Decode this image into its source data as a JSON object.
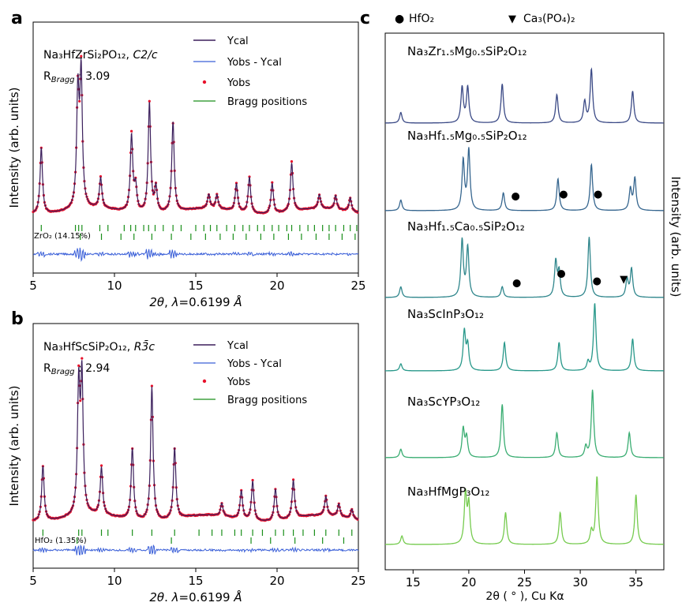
{
  "figure": {
    "panel_a_letter": "a",
    "panel_b_letter": "b",
    "panel_c_letter": "c"
  },
  "chart_data": [
    {
      "panel": "a",
      "type": "line",
      "ylabel": "Intensity (arb. units)",
      "xlabel_prefix": "2θ, ",
      "xlabel_lambda": "λ=0.6199 Å",
      "xlim": [
        5,
        25
      ],
      "xticks": [
        5,
        10,
        15,
        20,
        25
      ],
      "compound_label": "Na₃HfZrSi₂PO₁₂, ",
      "space_group": "C2/c",
      "rbragg_label": "R",
      "rbragg_sub": "Bragg",
      "rbragg_value": " : 3.09",
      "phase_label": "ZrO₂ (14.15%)",
      "legend_position": "top-right",
      "series": [
        {
          "name": "Ycal",
          "color": "#3b1f5c"
        },
        {
          "name": "Yobs - Ycal",
          "color": "#3a5fd8"
        },
        {
          "name": "Yobs",
          "color": "#e8102a"
        },
        {
          "name": "Bragg positions",
          "color": "#1a8f1a"
        }
      ],
      "peaks": [
        [
          5.5,
          0.48
        ],
        [
          7.75,
          0.82
        ],
        [
          7.95,
          0.95
        ],
        [
          9.15,
          0.22
        ],
        [
          11.05,
          0.55
        ],
        [
          11.3,
          0.18
        ],
        [
          12.15,
          0.8
        ],
        [
          12.55,
          0.18
        ],
        [
          13.6,
          0.65
        ],
        [
          15.8,
          0.1
        ],
        [
          16.3,
          0.1
        ],
        [
          17.5,
          0.2
        ],
        [
          18.3,
          0.26
        ],
        [
          19.7,
          0.22
        ],
        [
          20.9,
          0.35
        ],
        [
          22.6,
          0.1
        ],
        [
          23.6,
          0.1
        ],
        [
          24.5,
          0.1
        ]
      ],
      "bragg_row1": [
        5.5,
        7.6,
        7.8,
        8.0,
        9.1,
        9.6,
        10.6,
        11.0,
        11.3,
        11.8,
        12.1,
        12.5,
        13.0,
        13.6,
        14.1,
        15.0,
        15.5,
        15.9,
        16.3,
        16.9,
        17.4,
        17.9,
        18.3,
        18.8,
        19.2,
        19.7,
        20.1,
        20.6,
        20.9,
        21.4,
        21.9,
        22.3,
        22.8,
        23.2,
        23.6,
        24.1,
        24.5,
        24.9
      ],
      "bragg_row2": [
        7.9,
        9.2,
        10.4,
        11.2,
        12.3,
        13.5,
        14.7,
        15.6,
        16.5,
        17.3,
        18.1,
        19.0,
        19.8,
        20.7,
        21.5,
        22.4,
        23.2,
        24.0,
        24.8
      ]
    },
    {
      "panel": "b",
      "type": "line",
      "ylabel": "Intensity (arb. units)",
      "xlabel_prefix": "2θ, ",
      "xlabel_lambda": "λ=0.6199 Å",
      "xlim": [
        5,
        25
      ],
      "xticks": [
        5,
        10,
        15,
        20,
        25
      ],
      "compound_label": "Na₃HfScSiP₂O₁₂, ",
      "space_group": "R3̄c",
      "rbragg_label": "R",
      "rbragg_sub": "Bragg",
      "rbragg_value": " : 2.94",
      "phase_label": "HfO₂ (1.35%)",
      "legend_position": "top-right",
      "series": [
        {
          "name": "Ycal",
          "color": "#3b1f5c"
        },
        {
          "name": "Yobs - Ycal",
          "color": "#3a5fd8"
        },
        {
          "name": "Yobs",
          "color": "#e8102a"
        },
        {
          "name": "Bragg positions",
          "color": "#1a8f1a"
        }
      ],
      "peaks": [
        [
          5.6,
          0.35
        ],
        [
          7.8,
          0.8
        ],
        [
          8.0,
          0.85
        ],
        [
          9.2,
          0.3
        ],
        [
          11.1,
          0.45
        ],
        [
          12.3,
          0.85
        ],
        [
          13.7,
          0.45
        ],
        [
          16.6,
          0.08
        ],
        [
          17.8,
          0.18
        ],
        [
          18.5,
          0.25
        ],
        [
          19.9,
          0.2
        ],
        [
          21.0,
          0.24
        ],
        [
          23.0,
          0.12
        ],
        [
          23.8,
          0.08
        ],
        [
          24.6,
          0.06
        ]
      ],
      "bragg_row1": [
        5.6,
        7.8,
        8.0,
        9.2,
        9.6,
        11.1,
        12.3,
        13.7,
        15.2,
        16.0,
        16.6,
        17.4,
        17.8,
        18.5,
        19.1,
        19.9,
        20.4,
        21.0,
        21.6,
        22.3,
        23.0,
        23.8,
        24.6
      ],
      "bragg_row2": [
        7.7,
        13.5,
        18.4,
        19.6,
        21.1,
        22.8,
        24.1
      ]
    },
    {
      "panel": "c",
      "type": "line",
      "xlabel": "2θ ( ° ), Cu Kα",
      "ylabel": "Intensity (arb. units)",
      "xlim": [
        12.5,
        37.5
      ],
      "xticks": [
        15,
        20,
        25,
        30,
        35
      ],
      "legend": [
        {
          "marker": "●",
          "label": "HfO₂"
        },
        {
          "marker": "▼",
          "label": "Ca₃(PO₄)₂"
        }
      ],
      "series": [
        {
          "name": "Na₃Zr₁.₅Mg₀.₅SiP₂O₁₂",
          "color": "#3b4a86",
          "peaks": [
            [
              13.9,
              0.15
            ],
            [
              19.4,
              0.5
            ],
            [
              19.9,
              0.5
            ],
            [
              23.0,
              0.55
            ],
            [
              27.9,
              0.4
            ],
            [
              30.4,
              0.3
            ],
            [
              31.0,
              0.75
            ],
            [
              34.7,
              0.45
            ]
          ]
        },
        {
          "name": "Na₃Hf₁.₅Mg₀.₅SiP₂O₁₂",
          "color": "#36668f",
          "peaks": [
            [
              13.9,
              0.15
            ],
            [
              19.5,
              0.7
            ],
            [
              20.0,
              0.85
            ],
            [
              23.1,
              0.25
            ],
            [
              28.0,
              0.45
            ],
            [
              31.0,
              0.65
            ],
            [
              34.5,
              0.3
            ],
            [
              34.9,
              0.45
            ]
          ],
          "markers": [
            {
              "x": 24.2,
              "symbol": "●"
            },
            {
              "x": 28.5,
              "symbol": "●"
            },
            {
              "x": 31.6,
              "symbol": "●"
            }
          ]
        },
        {
          "name": "Na₃Hf₁.₅Ca₀.₅SiP₂O₁₂",
          "color": "#2f868c",
          "peaks": [
            [
              13.9,
              0.15
            ],
            [
              19.4,
              0.8
            ],
            [
              19.9,
              0.7
            ],
            [
              23.0,
              0.15
            ],
            [
              27.8,
              0.5
            ],
            [
              28.1,
              0.35
            ],
            [
              30.8,
              0.85
            ],
            [
              34.2,
              0.25
            ],
            [
              34.6,
              0.4
            ]
          ],
          "markers": [
            {
              "x": 24.3,
              "symbol": "●"
            },
            {
              "x": 28.3,
              "symbol": "●"
            },
            {
              "x": 31.5,
              "symbol": "●"
            },
            {
              "x": 33.9,
              "symbol": "▼"
            }
          ]
        },
        {
          "name": "Na₃ScInP₃O₁₂",
          "color": "#28988a",
          "peaks": [
            [
              13.9,
              0.1
            ],
            [
              19.6,
              0.55
            ],
            [
              19.9,
              0.35
            ],
            [
              23.2,
              0.4
            ],
            [
              28.1,
              0.4
            ],
            [
              30.7,
              0.12
            ],
            [
              31.3,
              0.95
            ],
            [
              34.7,
              0.45
            ]
          ]
        },
        {
          "name": "Na₃ScYP₃O₁₂",
          "color": "#3aad72",
          "peaks": [
            [
              13.9,
              0.12
            ],
            [
              19.5,
              0.4
            ],
            [
              19.8,
              0.28
            ],
            [
              23.0,
              0.75
            ],
            [
              27.9,
              0.35
            ],
            [
              30.5,
              0.15
            ],
            [
              31.1,
              0.95
            ],
            [
              34.4,
              0.35
            ]
          ]
        },
        {
          "name": "Na₃HfMgP₃O₁₂",
          "color": "#76cb4f",
          "peaks": [
            [
              14.0,
              0.12
            ],
            [
              19.7,
              0.7
            ],
            [
              20.0,
              0.55
            ],
            [
              23.3,
              0.45
            ],
            [
              28.2,
              0.45
            ],
            [
              31.0,
              0.18
            ],
            [
              31.5,
              0.95
            ],
            [
              35.0,
              0.7
            ]
          ]
        }
      ]
    }
  ]
}
